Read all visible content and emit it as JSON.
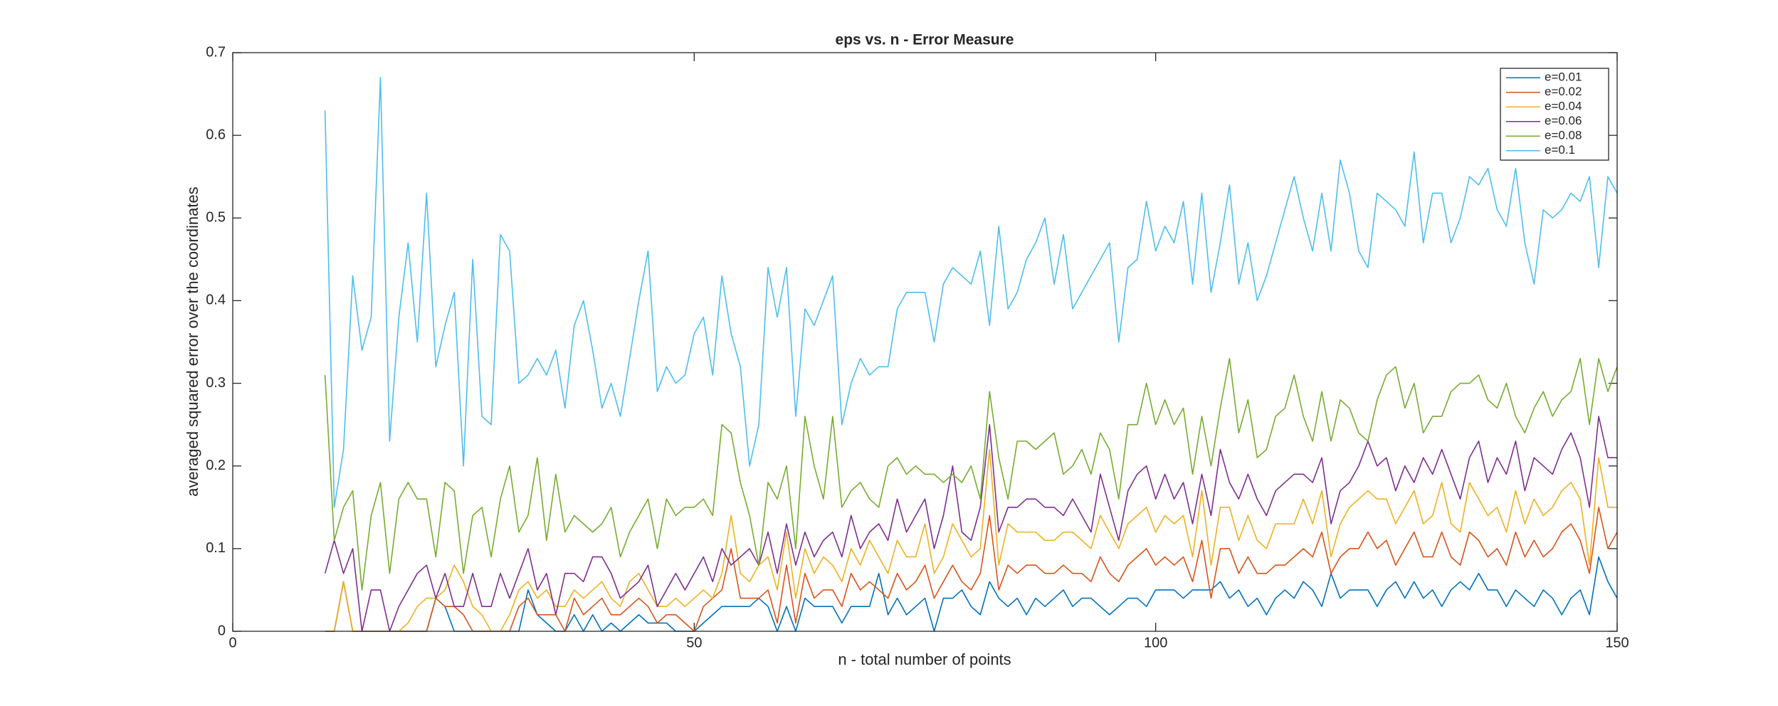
{
  "chart_data": {
    "type": "line",
    "title": "eps vs. n - Error Measure",
    "x_label": "n - total number of points",
    "y_label": "averaged squared error over the coordinates",
    "xlim": [
      0,
      150
    ],
    "ylim": [
      0,
      0.7
    ],
    "xticks": [
      0,
      50,
      100,
      150
    ],
    "yticks": [
      0,
      0.1,
      0.2,
      0.3,
      0.4,
      0.5,
      0.6,
      0.7
    ],
    "grid": false,
    "legend": "northeast",
    "x": [
      10,
      11,
      12,
      13,
      14,
      15,
      16,
      17,
      18,
      19,
      20,
      21,
      22,
      23,
      24,
      25,
      26,
      27,
      28,
      29,
      30,
      31,
      32,
      33,
      34,
      35,
      36,
      37,
      38,
      39,
      40,
      41,
      42,
      43,
      44,
      45,
      46,
      47,
      48,
      49,
      50,
      51,
      52,
      53,
      54,
      55,
      56,
      57,
      58,
      59,
      60,
      61,
      62,
      63,
      64,
      65,
      66,
      67,
      68,
      69,
      70,
      71,
      72,
      73,
      74,
      75,
      76,
      77,
      78,
      79,
      80,
      81,
      82,
      83,
      84,
      85,
      86,
      87,
      88,
      89,
      90,
      91,
      92,
      93,
      94,
      95,
      96,
      97,
      98,
      99,
      100,
      101,
      102,
      103,
      104,
      105,
      106,
      107,
      108,
      109,
      110,
      111,
      112,
      113,
      114,
      115,
      116,
      117,
      118,
      119,
      120,
      121,
      122,
      123,
      124,
      125,
      126,
      127,
      128,
      129,
      130,
      131,
      132,
      133,
      134,
      135,
      136,
      137,
      138,
      139,
      140,
      141,
      142,
      143,
      144,
      145,
      146,
      147,
      148,
      149,
      150
    ],
    "series": [
      {
        "name": "e=0.01",
        "color": "#0072bd",
        "values": [
          0,
          0,
          0.06,
          0,
          0,
          0,
          0,
          0,
          0,
          0,
          0,
          0,
          0.04,
          0.03,
          0,
          0,
          0,
          0,
          0,
          0,
          0,
          0,
          0.05,
          0.02,
          0.01,
          0,
          0,
          0.02,
          0,
          0.02,
          0,
          0.01,
          0,
          0.01,
          0.02,
          0.01,
          0.01,
          0.01,
          0,
          0,
          0,
          0.01,
          0.02,
          0.03,
          0.03,
          0.03,
          0.03,
          0.04,
          0.03,
          0,
          0.03,
          0,
          0.04,
          0.03,
          0.03,
          0.03,
          0.01,
          0.03,
          0.03,
          0.03,
          0.07,
          0.02,
          0.04,
          0.02,
          0.03,
          0.04,
          0,
          0.04,
          0.04,
          0.05,
          0.03,
          0.02,
          0.06,
          0.04,
          0.03,
          0.04,
          0.02,
          0.04,
          0.03,
          0.04,
          0.05,
          0.03,
          0.04,
          0.04,
          0.03,
          0.02,
          0.03,
          0.04,
          0.04,
          0.03,
          0.05,
          0.05,
          0.05,
          0.04,
          0.05,
          0.05,
          0.05,
          0.06,
          0.04,
          0.05,
          0.03,
          0.04,
          0.02,
          0.04,
          0.05,
          0.04,
          0.06,
          0.05,
          0.03,
          0.07,
          0.04,
          0.05,
          0.05,
          0.05,
          0.03,
          0.05,
          0.06,
          0.04,
          0.06,
          0.04,
          0.05,
          0.03,
          0.05,
          0.06,
          0.05,
          0.07,
          0.05,
          0.05,
          0.03,
          0.05,
          0.04,
          0.03,
          0.05,
          0.04,
          0.02,
          0.04,
          0.05,
          0.02,
          0.09,
          0.06,
          0.04
        ]
      },
      {
        "name": "e=0.02",
        "color": "#d95319",
        "values": [
          0,
          0,
          0.06,
          0,
          0,
          0,
          0,
          0,
          0,
          0,
          0,
          0,
          0.04,
          0.03,
          0.03,
          0.02,
          0,
          0,
          0,
          0,
          0,
          0.03,
          0.04,
          0.02,
          0.02,
          0.02,
          0,
          0.04,
          0.02,
          0.03,
          0.04,
          0.02,
          0.02,
          0.03,
          0.04,
          0.03,
          0.01,
          0.02,
          0.02,
          0.01,
          0,
          0.03,
          0.04,
          0.05,
          0.1,
          0.04,
          0.04,
          0.04,
          0.05,
          0.01,
          0.08,
          0.01,
          0.07,
          0.04,
          0.05,
          0.05,
          0.03,
          0.07,
          0.05,
          0.06,
          0.05,
          0.04,
          0.07,
          0.05,
          0.06,
          0.08,
          0.04,
          0.06,
          0.08,
          0.06,
          0.05,
          0.07,
          0.14,
          0.05,
          0.08,
          0.07,
          0.08,
          0.08,
          0.07,
          0.07,
          0.08,
          0.07,
          0.07,
          0.06,
          0.09,
          0.07,
          0.06,
          0.08,
          0.09,
          0.1,
          0.08,
          0.09,
          0.08,
          0.09,
          0.06,
          0.11,
          0.04,
          0.1,
          0.1,
          0.07,
          0.09,
          0.07,
          0.07,
          0.08,
          0.08,
          0.09,
          0.1,
          0.09,
          0.12,
          0.07,
          0.09,
          0.1,
          0.1,
          0.12,
          0.1,
          0.11,
          0.08,
          0.1,
          0.12,
          0.09,
          0.09,
          0.12,
          0.09,
          0.08,
          0.12,
          0.11,
          0.09,
          0.1,
          0.08,
          0.12,
          0.09,
          0.11,
          0.09,
          0.1,
          0.12,
          0.13,
          0.11,
          0.07,
          0.15,
          0.1,
          0.12
        ]
      },
      {
        "name": "e=0.04",
        "color": "#edb120",
        "values": [
          0,
          0,
          0.06,
          0,
          0,
          0,
          0,
          0,
          0,
          0.01,
          0.03,
          0.04,
          0.04,
          0.05,
          0.08,
          0.06,
          0.03,
          0.02,
          0,
          0,
          0.02,
          0.05,
          0.06,
          0.04,
          0.05,
          0.03,
          0.03,
          0.05,
          0.04,
          0.05,
          0.06,
          0.04,
          0.03,
          0.06,
          0.07,
          0.05,
          0.03,
          0.03,
          0.04,
          0.03,
          0.04,
          0.05,
          0.04,
          0.07,
          0.14,
          0.07,
          0.06,
          0.08,
          0.09,
          0.05,
          0.12,
          0.04,
          0.1,
          0.07,
          0.09,
          0.08,
          0.06,
          0.1,
          0.08,
          0.11,
          0.09,
          0.07,
          0.11,
          0.09,
          0.09,
          0.13,
          0.07,
          0.09,
          0.13,
          0.11,
          0.09,
          0.1,
          0.22,
          0.08,
          0.13,
          0.12,
          0.12,
          0.12,
          0.11,
          0.11,
          0.12,
          0.12,
          0.11,
          0.1,
          0.14,
          0.12,
          0.1,
          0.13,
          0.14,
          0.15,
          0.12,
          0.14,
          0.13,
          0.14,
          0.09,
          0.17,
          0.08,
          0.15,
          0.15,
          0.11,
          0.14,
          0.11,
          0.1,
          0.13,
          0.13,
          0.13,
          0.16,
          0.13,
          0.17,
          0.09,
          0.13,
          0.15,
          0.16,
          0.17,
          0.16,
          0.16,
          0.13,
          0.15,
          0.17,
          0.13,
          0.14,
          0.18,
          0.13,
          0.12,
          0.18,
          0.16,
          0.14,
          0.15,
          0.12,
          0.17,
          0.13,
          0.16,
          0.14,
          0.15,
          0.17,
          0.18,
          0.16,
          0.08,
          0.21,
          0.15,
          0.15
        ]
      },
      {
        "name": "e=0.06",
        "color": "#7e2f8e",
        "values": [
          0.07,
          0.11,
          0.07,
          0.1,
          0,
          0.05,
          0.05,
          0,
          0.03,
          0.05,
          0.07,
          0.08,
          0.04,
          0.07,
          0.03,
          0.03,
          0.07,
          0.03,
          0.03,
          0.07,
          0.04,
          0.07,
          0.1,
          0.05,
          0.07,
          0.02,
          0.07,
          0.07,
          0.06,
          0.09,
          0.09,
          0.07,
          0.04,
          0.05,
          0.06,
          0.08,
          0.03,
          0.05,
          0.07,
          0.05,
          0.07,
          0.09,
          0.06,
          0.1,
          0.08,
          0.09,
          0.1,
          0.08,
          0.12,
          0.07,
          0.13,
          0.08,
          0.12,
          0.09,
          0.11,
          0.12,
          0.09,
          0.14,
          0.1,
          0.12,
          0.13,
          0.11,
          0.16,
          0.12,
          0.14,
          0.16,
          0.1,
          0.14,
          0.2,
          0.12,
          0.11,
          0.15,
          0.25,
          0.12,
          0.15,
          0.15,
          0.16,
          0.16,
          0.15,
          0.15,
          0.14,
          0.16,
          0.14,
          0.12,
          0.19,
          0.15,
          0.11,
          0.17,
          0.19,
          0.2,
          0.16,
          0.19,
          0.16,
          0.18,
          0.13,
          0.19,
          0.14,
          0.22,
          0.18,
          0.16,
          0.19,
          0.16,
          0.14,
          0.17,
          0.18,
          0.19,
          0.19,
          0.18,
          0.21,
          0.13,
          0.17,
          0.18,
          0.2,
          0.23,
          0.2,
          0.21,
          0.17,
          0.2,
          0.18,
          0.21,
          0.19,
          0.22,
          0.19,
          0.16,
          0.21,
          0.23,
          0.18,
          0.21,
          0.19,
          0.23,
          0.17,
          0.21,
          0.2,
          0.19,
          0.22,
          0.24,
          0.21,
          0.15,
          0.26,
          0.21,
          0.21
        ]
      },
      {
        "name": "e=0.08",
        "color": "#77ac30",
        "values": [
          0.31,
          0.11,
          0.15,
          0.17,
          0.05,
          0.14,
          0.18,
          0.07,
          0.16,
          0.18,
          0.16,
          0.16,
          0.09,
          0.18,
          0.17,
          0.07,
          0.14,
          0.15,
          0.09,
          0.16,
          0.2,
          0.12,
          0.14,
          0.21,
          0.11,
          0.19,
          0.12,
          0.14,
          0.13,
          0.12,
          0.13,
          0.15,
          0.09,
          0.12,
          0.14,
          0.16,
          0.1,
          0.16,
          0.14,
          0.15,
          0.15,
          0.16,
          0.14,
          0.25,
          0.24,
          0.18,
          0.14,
          0.08,
          0.18,
          0.16,
          0.2,
          0.1,
          0.26,
          0.2,
          0.16,
          0.26,
          0.15,
          0.17,
          0.18,
          0.16,
          0.15,
          0.2,
          0.21,
          0.19,
          0.2,
          0.19,
          0.19,
          0.18,
          0.19,
          0.18,
          0.2,
          0.16,
          0.29,
          0.21,
          0.16,
          0.23,
          0.23,
          0.22,
          0.23,
          0.24,
          0.19,
          0.2,
          0.22,
          0.19,
          0.24,
          0.22,
          0.16,
          0.25,
          0.25,
          0.3,
          0.25,
          0.28,
          0.25,
          0.27,
          0.19,
          0.26,
          0.2,
          0.27,
          0.33,
          0.24,
          0.28,
          0.21,
          0.22,
          0.26,
          0.27,
          0.31,
          0.26,
          0.23,
          0.29,
          0.23,
          0.28,
          0.27,
          0.24,
          0.23,
          0.28,
          0.31,
          0.32,
          0.27,
          0.3,
          0.24,
          0.26,
          0.26,
          0.29,
          0.3,
          0.3,
          0.31,
          0.28,
          0.27,
          0.3,
          0.26,
          0.24,
          0.27,
          0.29,
          0.26,
          0.28,
          0.29,
          0.33,
          0.25,
          0.33,
          0.29,
          0.32
        ]
      },
      {
        "name": "e=0.1",
        "color": "#4dbeee",
        "values": [
          0.63,
          0.15,
          0.22,
          0.43,
          0.34,
          0.38,
          0.67,
          0.23,
          0.38,
          0.47,
          0.35,
          0.53,
          0.32,
          0.37,
          0.41,
          0.2,
          0.45,
          0.26,
          0.25,
          0.48,
          0.46,
          0.3,
          0.31,
          0.33,
          0.31,
          0.34,
          0.27,
          0.37,
          0.4,
          0.34,
          0.27,
          0.3,
          0.26,
          0.33,
          0.4,
          0.46,
          0.29,
          0.32,
          0.3,
          0.31,
          0.36,
          0.38,
          0.31,
          0.43,
          0.36,
          0.32,
          0.2,
          0.25,
          0.44,
          0.38,
          0.44,
          0.26,
          0.39,
          0.37,
          0.4,
          0.43,
          0.25,
          0.3,
          0.33,
          0.31,
          0.32,
          0.32,
          0.39,
          0.41,
          0.41,
          0.41,
          0.35,
          0.42,
          0.44,
          0.43,
          0.42,
          0.46,
          0.37,
          0.49,
          0.39,
          0.41,
          0.45,
          0.47,
          0.5,
          0.42,
          0.48,
          0.39,
          0.41,
          0.43,
          0.45,
          0.47,
          0.35,
          0.44,
          0.45,
          0.52,
          0.46,
          0.49,
          0.47,
          0.52,
          0.42,
          0.53,
          0.41,
          0.47,
          0.54,
          0.42,
          0.47,
          0.4,
          0.43,
          0.47,
          0.51,
          0.55,
          0.5,
          0.46,
          0.53,
          0.46,
          0.57,
          0.53,
          0.46,
          0.44,
          0.53,
          0.52,
          0.51,
          0.49,
          0.58,
          0.47,
          0.53,
          0.53,
          0.47,
          0.5,
          0.55,
          0.54,
          0.56,
          0.51,
          0.49,
          0.56,
          0.47,
          0.42,
          0.51,
          0.5,
          0.51,
          0.53,
          0.52,
          0.55,
          0.44,
          0.55,
          0.53
        ]
      }
    ]
  }
}
